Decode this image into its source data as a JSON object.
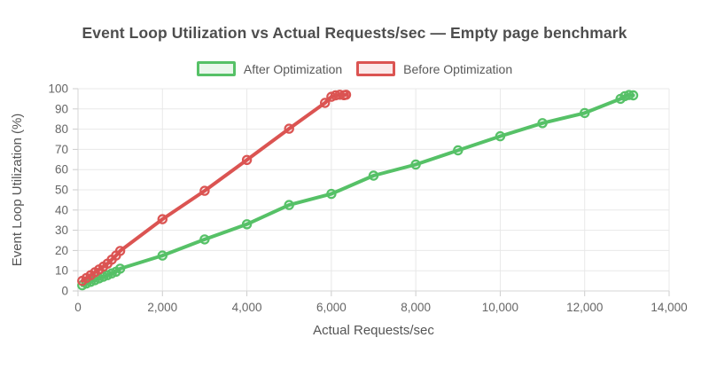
{
  "chart_data": {
    "type": "line",
    "title": "Event Loop Utilization vs Actual Requests/sec — Empty page benchmark",
    "xlabel": "Actual Requests/sec",
    "ylabel": "Event Loop Utilization (%)",
    "xlim": [
      0,
      14000
    ],
    "ylim": [
      0,
      100
    ],
    "x_ticks": [
      0,
      2000,
      4000,
      6000,
      8000,
      10000,
      12000,
      14000
    ],
    "x_tick_labels": [
      "0",
      "2,000",
      "4,000",
      "6,000",
      "8,000",
      "10,000",
      "12,000",
      "14,000"
    ],
    "y_ticks": [
      0,
      10,
      20,
      30,
      40,
      50,
      60,
      70,
      80,
      90,
      100
    ],
    "grid": true,
    "legend_position": "top",
    "colors": {
      "grid": "#e8e8e8",
      "axis": "#d6d6d6",
      "tick_mark": "#cccccc",
      "title_text": "#4e4e4e",
      "tick_text": "#666666"
    },
    "series": [
      {
        "name": "After Optimization",
        "color": "#56C167",
        "tint": "#EAF7EC",
        "points": [
          [
            100,
            2.8
          ],
          [
            200,
            3.7
          ],
          [
            300,
            4.5
          ],
          [
            400,
            5.3
          ],
          [
            500,
            6.2
          ],
          [
            600,
            7.0
          ],
          [
            700,
            7.8
          ],
          [
            800,
            8.7
          ],
          [
            900,
            9.5
          ],
          [
            1000,
            11.0
          ],
          [
            2000,
            17.5
          ],
          [
            3000,
            25.5
          ],
          [
            4000,
            33.0
          ],
          [
            5000,
            42.5
          ],
          [
            6000,
            48.0
          ],
          [
            7000,
            57.0
          ],
          [
            8000,
            62.5
          ],
          [
            9000,
            69.5
          ],
          [
            10000,
            76.5
          ],
          [
            11000,
            83.0
          ],
          [
            12000,
            88.0
          ],
          [
            12850,
            95.0
          ],
          [
            12950,
            96.3
          ],
          [
            13050,
            96.9
          ],
          [
            13150,
            96.7
          ]
        ]
      },
      {
        "name": "Before Optimization",
        "color": "#DB5452",
        "tint": "#FBE9E9",
        "points": [
          [
            100,
            5.0
          ],
          [
            200,
            6.4
          ],
          [
            300,
            7.8
          ],
          [
            400,
            9.2
          ],
          [
            500,
            10.6
          ],
          [
            600,
            12.0
          ],
          [
            700,
            13.5
          ],
          [
            800,
            15.5
          ],
          [
            900,
            17.5
          ],
          [
            1000,
            19.8
          ],
          [
            2000,
            35.5
          ],
          [
            3000,
            49.5
          ],
          [
            4000,
            64.8
          ],
          [
            5000,
            80.2
          ],
          [
            5850,
            93.0
          ],
          [
            6000,
            96.0
          ],
          [
            6100,
            96.7
          ],
          [
            6200,
            97.0
          ],
          [
            6300,
            96.8
          ],
          [
            6350,
            97.0
          ]
        ]
      }
    ]
  }
}
